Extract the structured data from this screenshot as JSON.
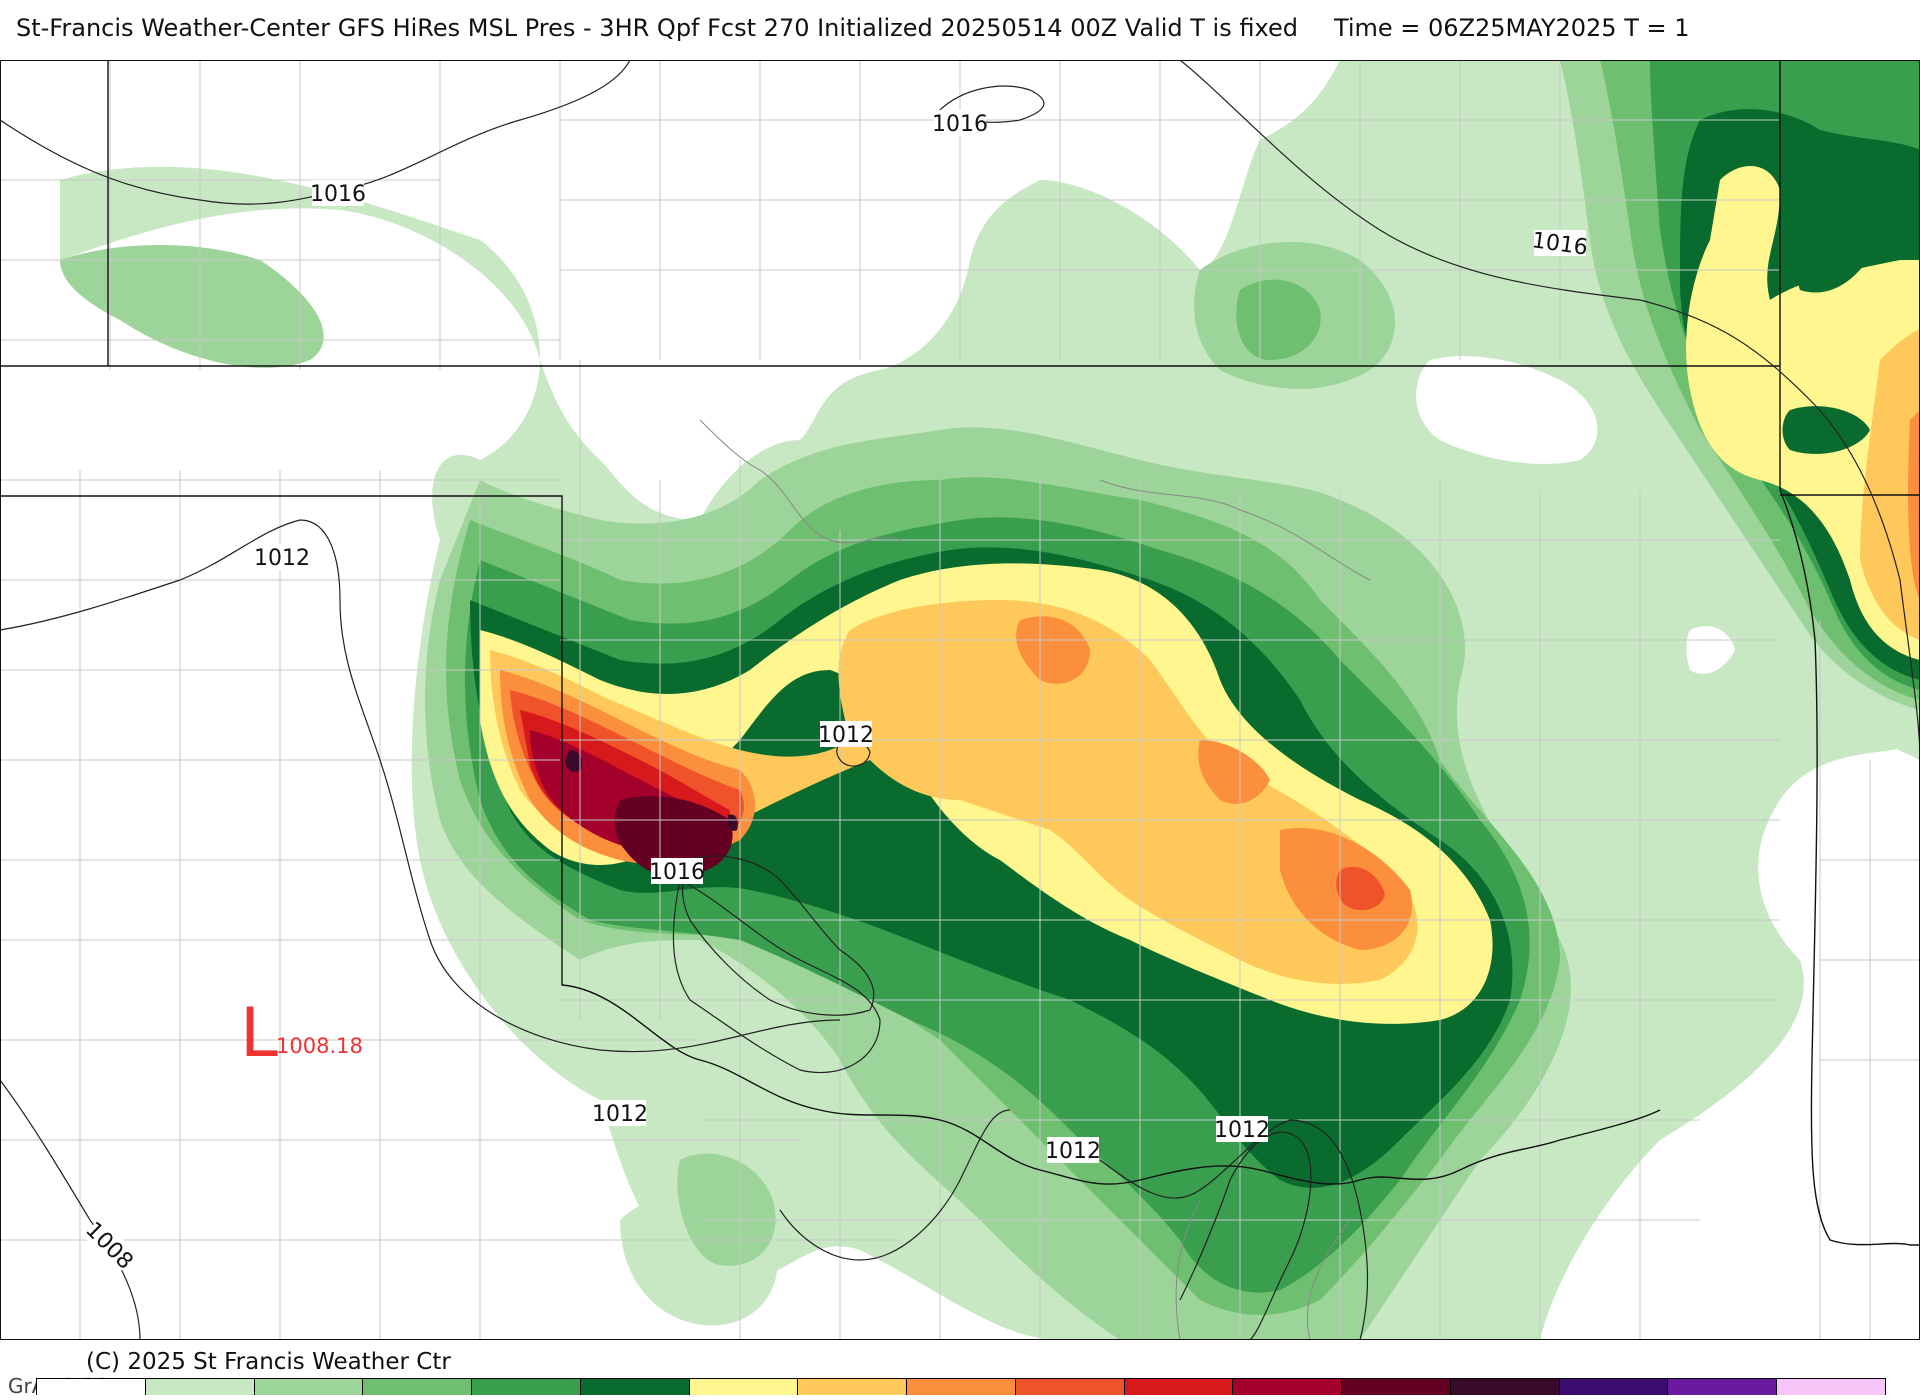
{
  "header": {
    "title_left": "St-Francis Weather-Center GFS HiRes MSL Pres - 3HR Qpf Fcst 270 Initialized 20250514 00Z Valid T is fixed",
    "title_right": "Time = 06Z25MAY2025  T = 1"
  },
  "map": {
    "isobar_labels": [
      "1016",
      "1016",
      "1016",
      "1012",
      "1012",
      "1016",
      "1012",
      "1012",
      "1012",
      "1008"
    ],
    "low_center": {
      "letter": "L",
      "pressure": "1008.18"
    },
    "colors": {
      "precip_levels": [
        "#c7e8c3",
        "#9dd49a",
        "#6fbf70",
        "#3a9e4f",
        "#0a6b2e",
        "#fff68f",
        "#fec95a",
        "#fb8f3c",
        "#f0522a",
        "#d7191c",
        "#a3002c",
        "#660022",
        "#3a0a2c",
        "#3b0c6e",
        "#6a1a9e",
        "#f7c4f7"
      ],
      "isobar": "#222222",
      "border": "#111111",
      "county": "#c8c8c8",
      "low": "#ee3333"
    }
  },
  "footer": {
    "copyright": "(C) 2025 St Francis Weather Ctr",
    "grads": "GrADS/COLA"
  }
}
